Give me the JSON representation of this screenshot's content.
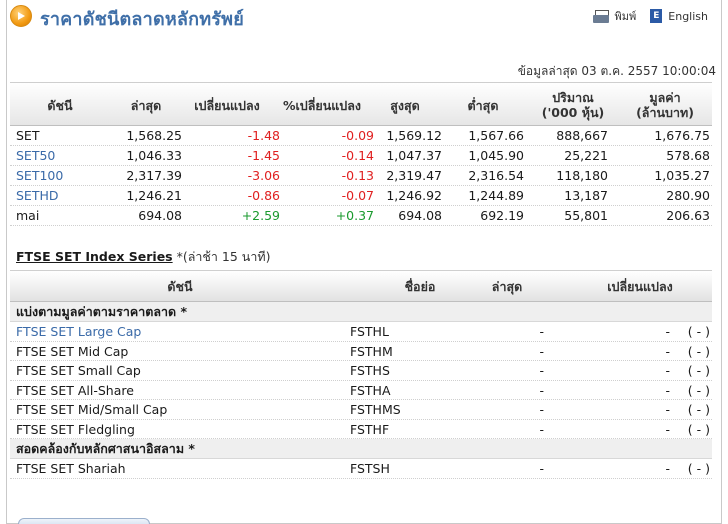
{
  "header": {
    "title": "ราคาดัชนีตลาดหลักทรัพย์",
    "print_label": "พิมพ์",
    "english_label": "English"
  },
  "timestamp": "ข้อมูลล่าสุด 03 ต.ค. 2557 10:00:04",
  "index_table": {
    "columns": [
      "ดัชนี",
      "ล่าสุด",
      "เปลี่ยนแปลง",
      "%เปลี่ยนแปลง",
      "สูงสุด",
      "ต่ำสุด",
      "ปริมาณ",
      "('000 หุ้น)",
      "มูลค่า",
      "(ล้านบาท)"
    ],
    "rows": [
      {
        "name": "SET",
        "last": "1,568.25",
        "change": "-1.48",
        "pct": "-0.09",
        "high": "1,569.12",
        "low": "1,567.66",
        "volume": "888,667",
        "value": "1,676.75"
      },
      {
        "name": "SET50",
        "last": "1,046.33",
        "change": "-1.45",
        "pct": "-0.14",
        "high": "1,047.37",
        "low": "1,045.90",
        "volume": "25,221",
        "value": "578.68"
      },
      {
        "name": "SET100",
        "last": "2,317.39",
        "change": "-3.06",
        "pct": "-0.13",
        "high": "2,319.47",
        "low": "2,316.54",
        "volume": "118,180",
        "value": "1,035.27"
      },
      {
        "name": "SETHD",
        "last": "1,246.21",
        "change": "-0.86",
        "pct": "-0.07",
        "high": "1,246.92",
        "low": "1,244.89",
        "volume": "13,187",
        "value": "280.90"
      },
      {
        "name": "mai",
        "last": "694.08",
        "change": "+2.59",
        "pct": "+0.37",
        "high": "694.08",
        "low": "692.19",
        "volume": "55,801",
        "value": "206.63"
      }
    ]
  },
  "ftse": {
    "title": "FTSE SET Index Series",
    "note": "*(ล่าช้า 15 นาที)",
    "columns": [
      "ดัชนี",
      "ชื่อย่อ",
      "ล่าสุด",
      "เปลี่ยนแปลง"
    ],
    "group1": "แบ่งตามมูลค่าตามราคาตลาด *",
    "group2": "สอดคล้องกับหลักศาสนาอิสลาม *",
    "rows": [
      {
        "name": "FTSE SET Large Cap",
        "symbol": "FSTHL",
        "last": "-",
        "change": "-",
        "pct": "( - )"
      },
      {
        "name": "FTSE SET Mid Cap",
        "symbol": "FSTHM",
        "last": "-",
        "change": "-",
        "pct": "( - )"
      },
      {
        "name": "FTSE SET Small Cap",
        "symbol": "FSTHS",
        "last": "-",
        "change": "-",
        "pct": "( - )"
      },
      {
        "name": "FTSE SET All-Share",
        "symbol": "FSTHA",
        "last": "-",
        "change": "-",
        "pct": "( - )"
      },
      {
        "name": "FTSE SET Mid/Small Cap",
        "symbol": "FSTHMS",
        "last": "-",
        "change": "-",
        "pct": "( - )"
      },
      {
        "name": "FTSE SET Fledgling",
        "symbol": "FSTHF",
        "last": "-",
        "change": "-",
        "pct": "( - )"
      },
      {
        "name": "FTSE SET Shariah",
        "symbol": "FSTSH",
        "last": "-",
        "change": "-",
        "pct": "( - )"
      }
    ]
  },
  "colors": {
    "title": "#3f6fa8",
    "negative": "#e02020",
    "positive": "#1a9a2e",
    "link": "#3a6aa8"
  }
}
